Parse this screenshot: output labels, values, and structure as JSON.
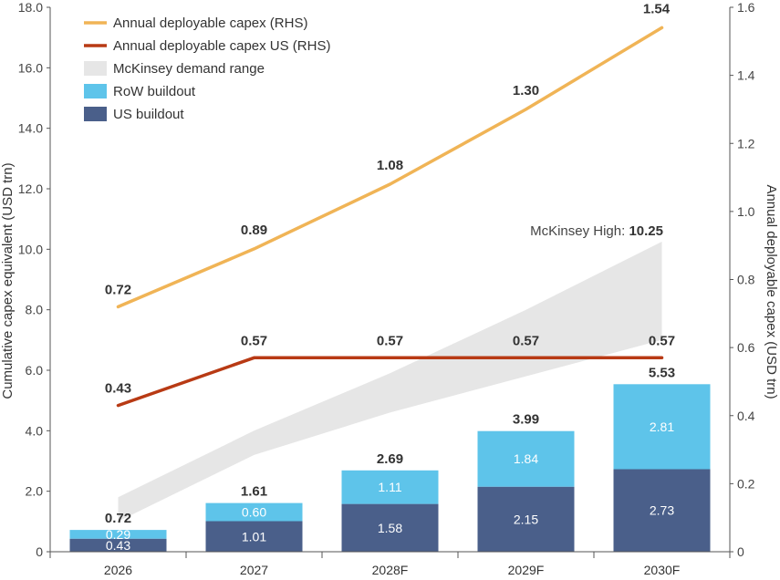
{
  "chart_data": {
    "type": "bar",
    "categories": [
      "2026",
      "2027",
      "2028F",
      "2029F",
      "2030F"
    ],
    "y_left": {
      "label": "Cumulative capex equivalent (USD trn)",
      "range": [
        0,
        18
      ],
      "ticks": [
        "0",
        "2.0",
        "4.0",
        "6.0",
        "8.0",
        "10.0",
        "12.0",
        "14.0",
        "16.0",
        "18.0"
      ]
    },
    "y_right": {
      "label": "Annual deployable capex (USD trn)",
      "range": [
        0,
        1.6
      ],
      "ticks": [
        "0",
        "0.2",
        "0.4",
        "0.6",
        "0.8",
        "1.0",
        "1.2",
        "1.4",
        "1.6"
      ]
    },
    "bars": [
      {
        "name": "US buildout",
        "color": "#4a5f8a",
        "values": [
          0.43,
          1.01,
          1.58,
          2.15,
          2.73
        ],
        "labels": [
          "0.43",
          "1.01",
          "1.58",
          "2.15",
          "2.73"
        ]
      },
      {
        "name": "RoW buildout",
        "color": "#5ec4ea",
        "values": [
          0.29,
          0.6,
          1.11,
          1.84,
          2.81
        ],
        "labels": [
          "0.29",
          "0.60",
          "1.11",
          "1.84",
          "2.81"
        ]
      }
    ],
    "bar_totals": [
      "0.72",
      "1.61",
      "2.69",
      "3.99",
      "5.53"
    ],
    "bar_total_values": [
      0.72,
      1.61,
      2.69,
      3.99,
      5.53
    ],
    "lines": [
      {
        "name": "Annual deployable capex (RHS)",
        "color": "#f0b456",
        "axis": "right",
        "values": [
          0.72,
          0.89,
          1.08,
          1.3,
          1.54
        ],
        "labels": [
          "0.72",
          "0.89",
          "1.08",
          "1.30",
          "1.54"
        ]
      },
      {
        "name": "Annual deployable capex US (RHS)",
        "color": "#b83a14",
        "axis": "right",
        "values": [
          0.43,
          0.57,
          0.57,
          0.57,
          0.57
        ],
        "labels": [
          "0.43",
          "0.57",
          "0.57",
          "0.57",
          "0.57"
        ]
      }
    ],
    "band": {
      "name": "McKinsey demand range",
      "color": "#e6e6e6",
      "low": [
        1.0,
        3.2,
        4.6,
        5.8,
        7.0
      ],
      "high": [
        1.8,
        4.0,
        5.9,
        8.0,
        10.25
      ]
    },
    "annotation": {
      "label": "McKinsey High: ",
      "value": "10.25"
    },
    "legend": {
      "placement": "top-left",
      "items": [
        {
          "label": "Annual deployable capex (RHS)",
          "kind": "line",
          "color": "#f0b456"
        },
        {
          "label": "Annual deployable capex US (RHS)",
          "kind": "line",
          "color": "#b83a14"
        },
        {
          "label": "McKinsey demand range",
          "kind": "box",
          "color": "#e6e6e6"
        },
        {
          "label": "RoW buildout",
          "kind": "box",
          "color": "#5ec4ea"
        },
        {
          "label": "US buildout",
          "kind": "box",
          "color": "#4a5f8a"
        }
      ]
    },
    "grid": false
  }
}
